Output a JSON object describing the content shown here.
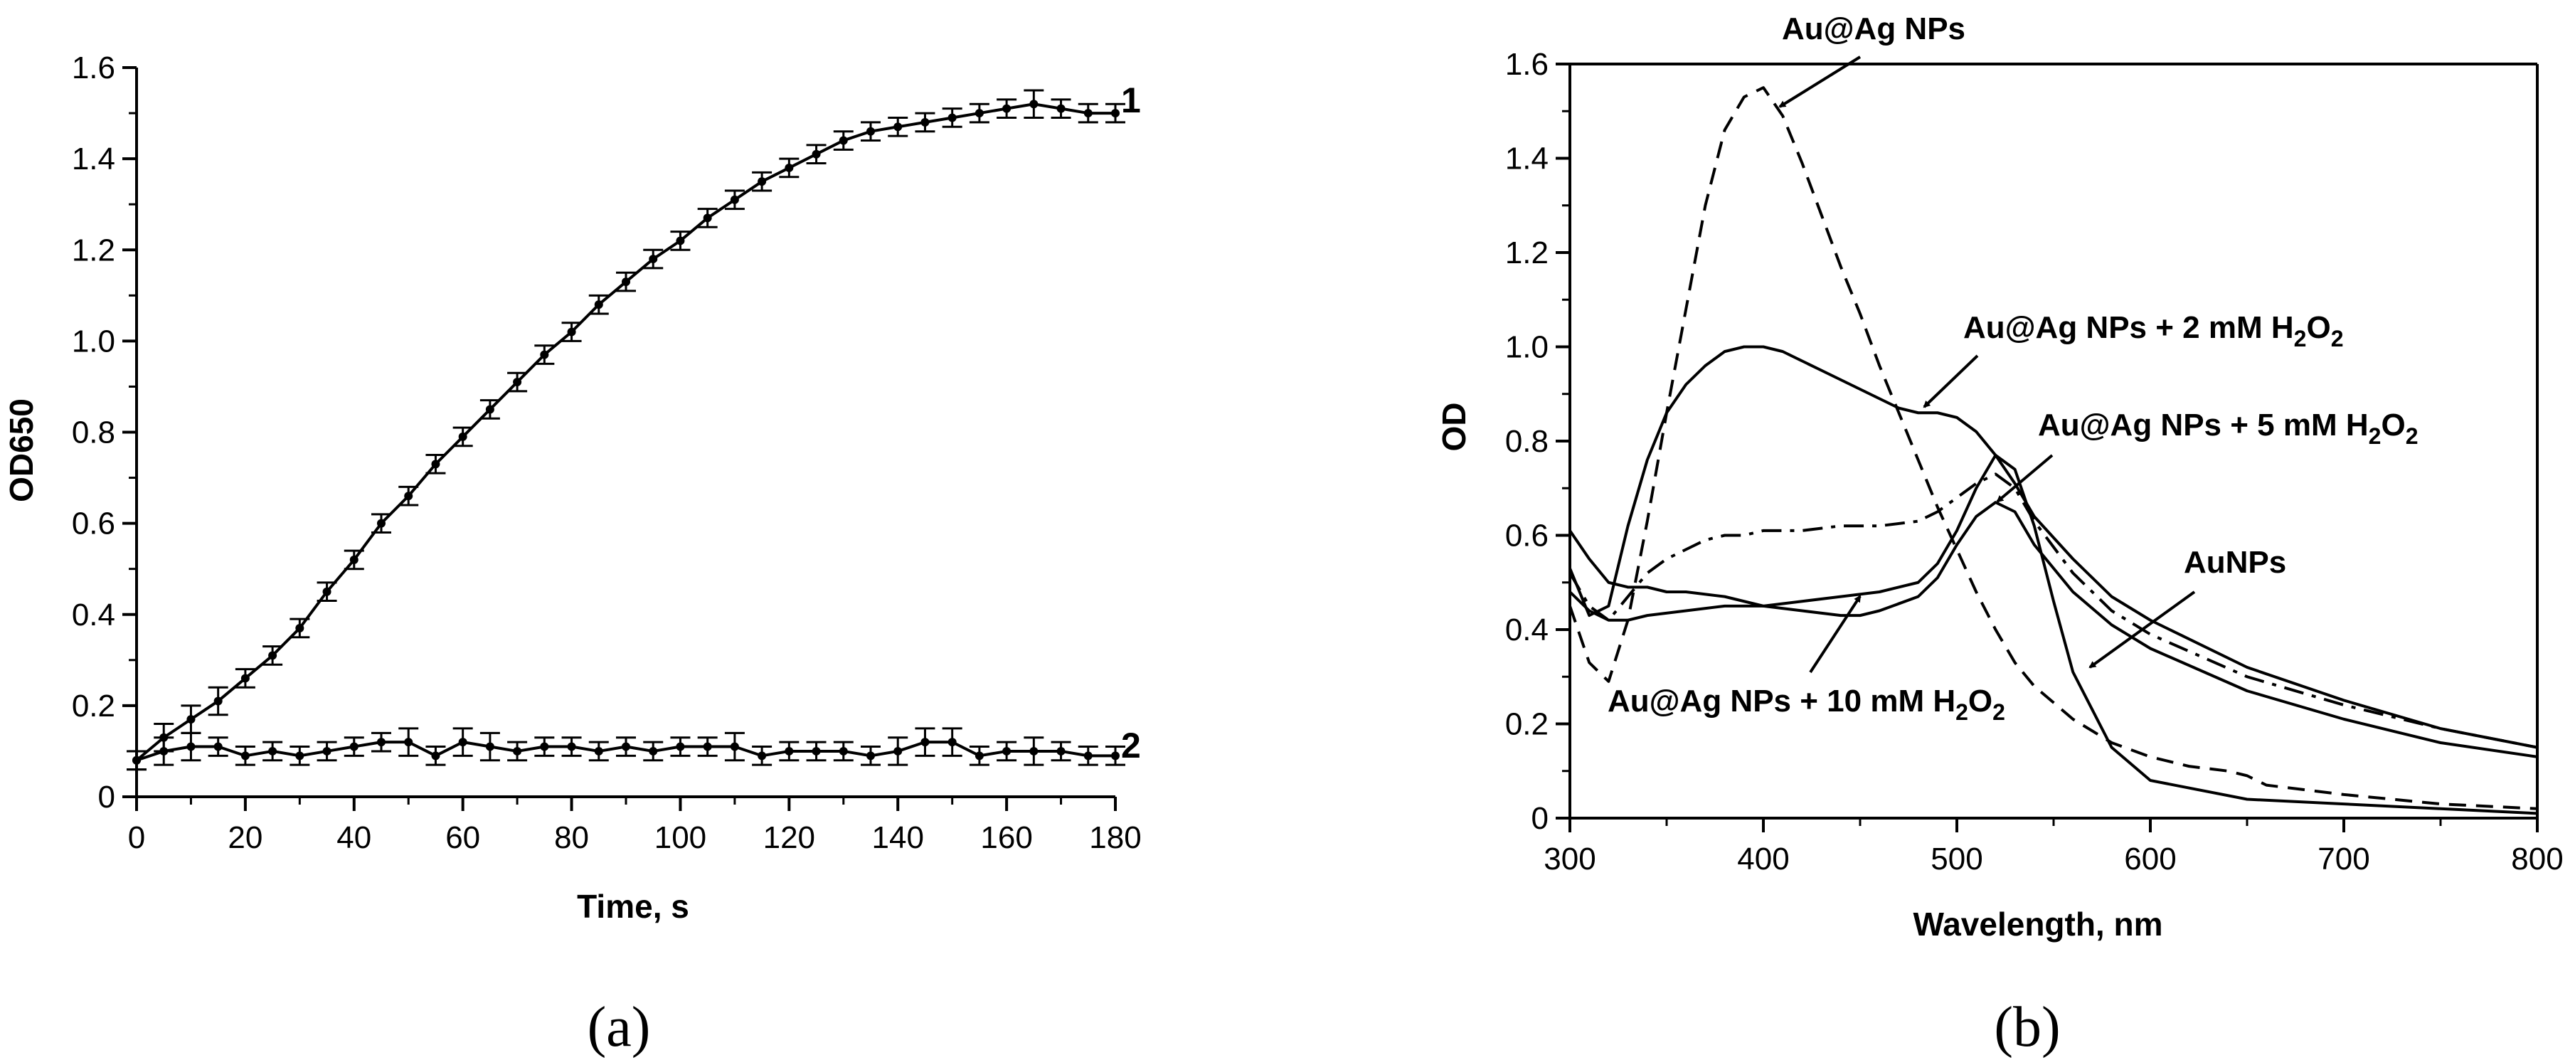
{
  "chart_data": [
    {
      "type": "line",
      "panel_label": "(a)",
      "xlabel": "Time, s",
      "ylabel": "OD650",
      "xlim": [
        0,
        180
      ],
      "ylim": [
        0,
        1.6
      ],
      "xticks": [
        0,
        20,
        40,
        60,
        80,
        100,
        120,
        140,
        160,
        180
      ],
      "yticks": [
        0,
        0.2,
        0.4,
        0.6,
        0.8,
        1.0,
        1.2,
        1.4,
        1.6
      ],
      "xtick_labels": [
        "0",
        "20",
        "40",
        "60",
        "80",
        "100",
        "120",
        "140",
        "160",
        "180"
      ],
      "ytick_labels": [
        "0",
        "0.2",
        "0.4",
        "0.6",
        "0.8",
        "1.0",
        "1.2",
        "1.4",
        "1.6"
      ],
      "x": [
        0,
        5,
        10,
        15,
        20,
        25,
        30,
        35,
        40,
        45,
        50,
        55,
        60,
        65,
        70,
        75,
        80,
        85,
        90,
        95,
        100,
        105,
        110,
        115,
        120,
        125,
        130,
        135,
        140,
        145,
        150,
        155,
        160,
        165,
        170,
        175,
        180
      ],
      "series": [
        {
          "name": "1",
          "values": [
            0.08,
            0.13,
            0.17,
            0.21,
            0.26,
            0.31,
            0.37,
            0.45,
            0.52,
            0.6,
            0.66,
            0.73,
            0.79,
            0.85,
            0.91,
            0.97,
            1.02,
            1.08,
            1.13,
            1.18,
            1.22,
            1.27,
            1.31,
            1.35,
            1.38,
            1.41,
            1.44,
            1.46,
            1.47,
            1.48,
            1.49,
            1.5,
            1.51,
            1.52,
            1.51,
            1.5,
            1.5
          ],
          "errors": [
            0.02,
            0.03,
            0.03,
            0.03,
            0.02,
            0.02,
            0.02,
            0.02,
            0.02,
            0.02,
            0.02,
            0.02,
            0.02,
            0.02,
            0.02,
            0.02,
            0.02,
            0.02,
            0.02,
            0.02,
            0.02,
            0.02,
            0.02,
            0.02,
            0.02,
            0.02,
            0.02,
            0.02,
            0.02,
            0.02,
            0.02,
            0.02,
            0.02,
            0.03,
            0.02,
            0.02,
            0.02
          ]
        },
        {
          "name": "2",
          "values": [
            0.08,
            0.1,
            0.11,
            0.11,
            0.09,
            0.1,
            0.09,
            0.1,
            0.11,
            0.12,
            0.12,
            0.09,
            0.12,
            0.11,
            0.1,
            0.11,
            0.11,
            0.1,
            0.11,
            0.1,
            0.11,
            0.11,
            0.11,
            0.09,
            0.1,
            0.1,
            0.1,
            0.09,
            0.1,
            0.12,
            0.12,
            0.09,
            0.1,
            0.1,
            0.1,
            0.09,
            0.09
          ],
          "errors": [
            0.02,
            0.03,
            0.03,
            0.02,
            0.02,
            0.02,
            0.02,
            0.02,
            0.02,
            0.02,
            0.03,
            0.02,
            0.03,
            0.03,
            0.02,
            0.02,
            0.02,
            0.02,
            0.02,
            0.02,
            0.02,
            0.02,
            0.03,
            0.02,
            0.02,
            0.02,
            0.02,
            0.02,
            0.03,
            0.03,
            0.03,
            0.02,
            0.02,
            0.03,
            0.02,
            0.02,
            0.02
          ]
        }
      ]
    },
    {
      "type": "line",
      "panel_label": "(b)",
      "xlabel": "Wavelength, nm",
      "ylabel": "OD",
      "xlim": [
        300,
        800
      ],
      "ylim": [
        0,
        1.6
      ],
      "xticks": [
        300,
        400,
        500,
        600,
        700,
        800
      ],
      "yticks": [
        0,
        0.2,
        0.4,
        0.6,
        0.8,
        1.0,
        1.2,
        1.4,
        1.6
      ],
      "xtick_labels": [
        "300",
        "400",
        "500",
        "600",
        "700",
        "800"
      ],
      "ytick_labels": [
        "0",
        "0.2",
        "0.4",
        "0.6",
        "0.8",
        "1.0",
        "1.2",
        "1.4",
        "1.6"
      ],
      "annotations": {
        "au_ag": "Au@Ag NPs",
        "au_ag_2mm": "Au@Ag NPs + 2 mM H",
        "au_ag_5mm": "Au@Ag NPs + 5 mM H",
        "au_ag_10mm": "Au@Ag NPs + 10 mM H",
        "aunps": "AuNPs",
        "h2o2_sub_2": "2",
        "h2o2_sub_o": "O",
        "h2o2_sub_2b": "2"
      },
      "series": [
        {
          "name": "Au@Ag NPs",
          "style": "dashed",
          "x": [
            300,
            310,
            320,
            330,
            340,
            350,
            360,
            370,
            380,
            390,
            400,
            410,
            420,
            430,
            440,
            450,
            460,
            470,
            480,
            490,
            500,
            510,
            520,
            530,
            540,
            560,
            580,
            600,
            620,
            640,
            650,
            660,
            680,
            700,
            750,
            800
          ],
          "values": [
            0.45,
            0.33,
            0.29,
            0.42,
            0.63,
            0.86,
            1.08,
            1.3,
            1.46,
            1.53,
            1.55,
            1.49,
            1.39,
            1.28,
            1.17,
            1.07,
            0.96,
            0.86,
            0.76,
            0.66,
            0.57,
            0.48,
            0.4,
            0.33,
            0.28,
            0.21,
            0.16,
            0.13,
            0.11,
            0.1,
            0.09,
            0.07,
            0.06,
            0.05,
            0.03,
            0.02
          ]
        },
        {
          "name": "Au@Ag NPs + 2 mM H2O2",
          "style": "solid",
          "x": [
            300,
            310,
            320,
            330,
            340,
            350,
            360,
            370,
            380,
            390,
            400,
            410,
            420,
            430,
            440,
            450,
            460,
            470,
            480,
            490,
            500,
            510,
            520,
            530,
            540,
            560,
            580,
            600,
            650,
            700,
            750,
            800
          ],
          "values": [
            0.53,
            0.43,
            0.45,
            0.62,
            0.76,
            0.86,
            0.92,
            0.96,
            0.99,
            1.0,
            1.0,
            0.99,
            0.97,
            0.95,
            0.93,
            0.91,
            0.89,
            0.87,
            0.86,
            0.86,
            0.85,
            0.82,
            0.77,
            0.71,
            0.64,
            0.55,
            0.47,
            0.42,
            0.32,
            0.25,
            0.19,
            0.15
          ]
        },
        {
          "name": "Au@Ag NPs + 5 mM H2O2",
          "style": "dashdot",
          "x": [
            300,
            310,
            320,
            330,
            340,
            350,
            360,
            370,
            380,
            390,
            400,
            420,
            440,
            460,
            480,
            490,
            500,
            510,
            520,
            530,
            540,
            560,
            580,
            600,
            650,
            700,
            750,
            800
          ],
          "values": [
            0.52,
            0.45,
            0.42,
            0.47,
            0.52,
            0.55,
            0.57,
            0.59,
            0.6,
            0.6,
            0.61,
            0.61,
            0.62,
            0.62,
            0.63,
            0.65,
            0.68,
            0.71,
            0.73,
            0.7,
            0.63,
            0.52,
            0.44,
            0.39,
            0.3,
            0.24,
            0.19,
            0.15
          ]
        },
        {
          "name": "Au@Ag NPs + 10 mM H2O2",
          "style": "solid",
          "x": [
            300,
            310,
            320,
            330,
            340,
            360,
            380,
            400,
            420,
            440,
            460,
            480,
            490,
            500,
            510,
            520,
            530,
            540,
            550,
            560,
            580,
            600,
            650,
            700,
            750,
            800
          ],
          "values": [
            0.48,
            0.44,
            0.42,
            0.42,
            0.43,
            0.44,
            0.45,
            0.45,
            0.46,
            0.47,
            0.48,
            0.5,
            0.54,
            0.61,
            0.7,
            0.77,
            0.74,
            0.62,
            0.46,
            0.31,
            0.15,
            0.08,
            0.04,
            0.03,
            0.02,
            0.01
          ]
        },
        {
          "name": "AuNPs",
          "style": "solid",
          "x": [
            300,
            310,
            320,
            330,
            340,
            350,
            360,
            380,
            400,
            420,
            440,
            450,
            460,
            480,
            490,
            500,
            510,
            520,
            530,
            540,
            560,
            580,
            600,
            650,
            700,
            750,
            800
          ],
          "values": [
            0.61,
            0.55,
            0.5,
            0.49,
            0.49,
            0.48,
            0.48,
            0.47,
            0.45,
            0.44,
            0.43,
            0.43,
            0.44,
            0.47,
            0.51,
            0.58,
            0.64,
            0.67,
            0.65,
            0.58,
            0.48,
            0.41,
            0.36,
            0.27,
            0.21,
            0.16,
            0.13
          ]
        }
      ]
    }
  ]
}
